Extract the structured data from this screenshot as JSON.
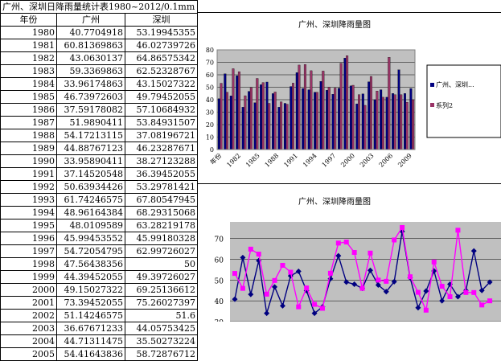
{
  "sheet": {
    "title": "广州、深圳日降雨量统计表1980~2012/0.1mm",
    "headers": [
      "年份",
      "广州",
      "深圳"
    ],
    "rows": [
      [
        "1980",
        "40.7704918",
        "53.19945355"
      ],
      [
        "1981",
        "60.81369863",
        "46.02739726"
      ],
      [
        "1982",
        "43.0630137",
        "64.86575342"
      ],
      [
        "1983",
        "59.3369863",
        "62.52328767"
      ],
      [
        "1984",
        "33.96174863",
        "43.15027322"
      ],
      [
        "1985",
        "46.73972603",
        "49.79452055"
      ],
      [
        "1986",
        "37.59178082",
        "57.10684932"
      ],
      [
        "1987",
        "51.9890411",
        "53.84931507"
      ],
      [
        "1988",
        "54.17213115",
        "37.08196721"
      ],
      [
        "1989",
        "44.88767123",
        "46.23287671"
      ],
      [
        "1990",
        "33.95890411",
        "38.27123288"
      ],
      [
        "1991",
        "37.14520548",
        "36.39452055"
      ],
      [
        "1992",
        "50.63934426",
        "53.29781421"
      ],
      [
        "1993",
        "61.74246575",
        "67.80547945"
      ],
      [
        "1994",
        "48.96164384",
        "68.29315068"
      ],
      [
        "1995",
        "48.0109589",
        "63.28219178"
      ],
      [
        "1996",
        "45.99453552",
        "45.99180328"
      ],
      [
        "1997",
        "54.72054795",
        "62.99726027"
      ],
      [
        "1998",
        "47.56438356",
        "50"
      ],
      [
        "1999",
        "44.39452055",
        "49.39726027"
      ],
      [
        "2000",
        "49.15027322",
        "69.25136612"
      ],
      [
        "2001",
        "73.39452055",
        "75.26027397"
      ],
      [
        "2002",
        "51.14246575",
        "51.6"
      ],
      [
        "2003",
        "36.67671233",
        "44.05753425"
      ],
      [
        "2004",
        "44.71311475",
        "35.50273224"
      ],
      [
        "2005",
        "54.41643836",
        "58.72876712"
      ]
    ]
  },
  "chart_top": {
    "title": "广州、深圳降雨量图",
    "x_label": "年份",
    "legend": [
      "广州、深圳...",
      "系列2"
    ]
  },
  "chart_bottom": {
    "title": "广州、深圳降雨量图"
  },
  "chart_data": [
    {
      "type": "bar",
      "title": "广州、深圳降雨量图",
      "xlabel": "年份",
      "ylim": [
        0,
        80
      ],
      "y_ticks": [
        0,
        10,
        20,
        30,
        40,
        50,
        60,
        70,
        80
      ],
      "x_tick_labels": [
        "年份",
        "1982",
        "1985",
        "1988",
        "1991",
        "1994",
        "1997",
        "2000",
        "2003",
        "2006",
        "2009"
      ],
      "categories": [
        "1980",
        "1981",
        "1982",
        "1983",
        "1984",
        "1985",
        "1986",
        "1987",
        "1988",
        "1989",
        "1990",
        "1991",
        "1992",
        "1993",
        "1994",
        "1995",
        "1996",
        "1997",
        "1998",
        "1999",
        "2000",
        "2001",
        "2002",
        "2003",
        "2004",
        "2005",
        "2006",
        "2007",
        "2008",
        "2009",
        "2010",
        "2011",
        "2012"
      ],
      "series": [
        {
          "name": "广州、深圳...",
          "color": "#000080",
          "values": [
            40.8,
            60.8,
            43.1,
            59.3,
            34.0,
            46.7,
            37.6,
            52.0,
            54.2,
            44.9,
            34.0,
            37.1,
            50.6,
            61.7,
            49.0,
            48.0,
            46.0,
            54.7,
            47.6,
            44.4,
            49.2,
            73.4,
            51.1,
            36.7,
            44.7,
            54.4,
            40,
            48,
            42,
            45,
            64,
            45,
            49
          ]
        },
        {
          "name": "系列2",
          "color": "#993366",
          "values": [
            53.2,
            46.0,
            64.9,
            62.5,
            43.2,
            49.8,
            57.1,
            53.8,
            37.1,
            46.2,
            38.3,
            36.4,
            53.3,
            67.8,
            68.3,
            63.3,
            46.0,
            63.0,
            50.0,
            49.4,
            69.3,
            75.3,
            51.6,
            44.1,
            35.5,
            58.7,
            47,
            42,
            74,
            44,
            44,
            38,
            40
          ]
        }
      ]
    },
    {
      "type": "line",
      "title": "广州、深圳降雨量图",
      "ylim": [
        30,
        80
      ],
      "y_ticks": [
        30,
        40,
        50,
        60,
        70,
        80
      ],
      "categories": [
        "1980",
        "1981",
        "1982",
        "1983",
        "1984",
        "1985",
        "1986",
        "1987",
        "1988",
        "1989",
        "1990",
        "1991",
        "1992",
        "1993",
        "1994",
        "1995",
        "1996",
        "1997",
        "1998",
        "1999",
        "2000",
        "2001",
        "2002",
        "2003",
        "2004",
        "2005",
        "2006",
        "2007",
        "2008",
        "2009",
        "2010",
        "2011",
        "2012"
      ],
      "series": [
        {
          "color": "#000080",
          "values": [
            40.8,
            60.8,
            43.1,
            59.3,
            34.0,
            46.7,
            37.6,
            52.0,
            54.2,
            44.9,
            34.0,
            37.1,
            50.6,
            61.7,
            49.0,
            48.0,
            46.0,
            54.7,
            47.6,
            44.4,
            49.2,
            73.4,
            51.1,
            36.7,
            44.7,
            54.4,
            40,
            48,
            42,
            45,
            64,
            45,
            49
          ]
        },
        {
          "color": "#ff00ff",
          "values": [
            53.2,
            46.0,
            64.9,
            62.5,
            43.2,
            49.8,
            57.1,
            53.8,
            37.1,
            46.2,
            38.3,
            36.4,
            53.3,
            67.8,
            68.3,
            63.3,
            46.0,
            63.0,
            50.0,
            49.4,
            69.3,
            75.3,
            51.6,
            44.1,
            35.5,
            58.7,
            47,
            42,
            74,
            44,
            44,
            38,
            40
          ]
        }
      ]
    }
  ]
}
